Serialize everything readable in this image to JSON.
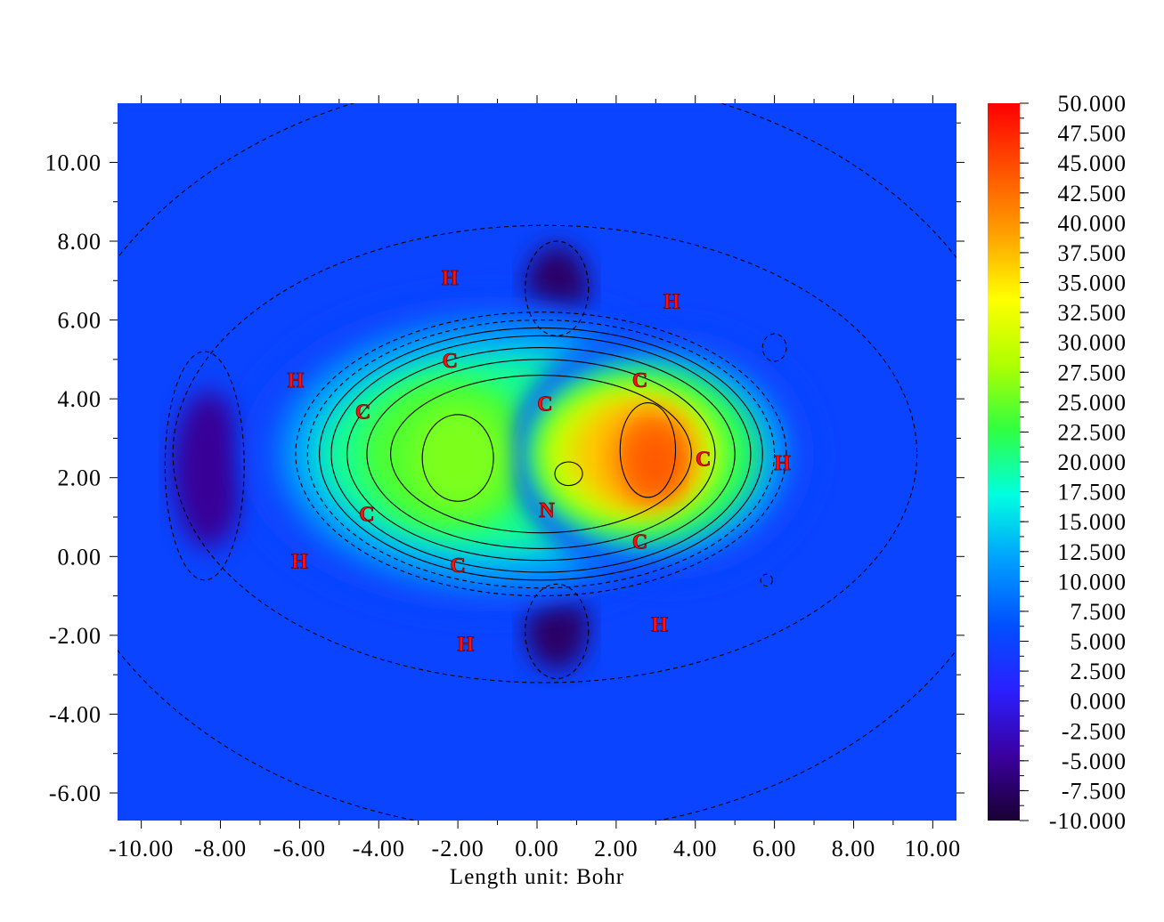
{
  "chart_data": {
    "type": "heatmap",
    "xlabel": "Length unit: Bohr",
    "x_ticks": [
      "-10.00",
      "-8.00",
      "-6.00",
      "-4.00",
      "-2.00",
      "0.00",
      "2.00",
      "4.00",
      "6.00",
      "8.00",
      "10.00"
    ],
    "y_ticks": [
      "10.00",
      "8.00",
      "6.00",
      "4.00",
      "2.00",
      "0.00",
      "-2.00",
      "-4.00",
      "-6.00"
    ],
    "xlim": [
      -10.6,
      10.6
    ],
    "ylim": [
      -6.7,
      11.5
    ],
    "colorbar": {
      "range": [
        -10,
        50
      ],
      "tick_labels": [
        "50.000",
        "47.500",
        "45.000",
        "42.500",
        "40.000",
        "37.500",
        "35.000",
        "32.500",
        "30.000",
        "27.500",
        "25.000",
        "22.500",
        "20.000",
        "17.500",
        "15.000",
        "12.500",
        "10.000",
        "7.500",
        "5.000",
        "2.500",
        "0.000",
        "-2.500",
        "-5.000",
        "-7.500",
        "-10.000"
      ],
      "colormap": [
        "#1a0033",
        "#3a00a0",
        "#2a20ff",
        "#0050ff",
        "#00a0ff",
        "#00ffe0",
        "#30ff40",
        "#b0ff00",
        "#ffff00",
        "#ffa000",
        "#ff5000",
        "#ff0000"
      ]
    },
    "atoms": [
      {
        "label": "H",
        "x": -2.2,
        "y": 7.1
      },
      {
        "label": "H",
        "x": 3.4,
        "y": 6.5
      },
      {
        "label": "C",
        "x": -2.2,
        "y": 5.0
      },
      {
        "label": "H",
        "x": -6.1,
        "y": 4.5
      },
      {
        "label": "C",
        "x": 2.6,
        "y": 4.5
      },
      {
        "label": "C",
        "x": -4.4,
        "y": 3.7
      },
      {
        "label": "C",
        "x": 0.2,
        "y": 3.9
      },
      {
        "label": "C",
        "x": 4.2,
        "y": 2.5
      },
      {
        "label": "H",
        "x": 6.2,
        "y": 2.4
      },
      {
        "label": "N",
        "x": 0.25,
        "y": 1.2
      },
      {
        "label": "C",
        "x": -4.3,
        "y": 1.1
      },
      {
        "label": "C",
        "x": 2.6,
        "y": 0.4
      },
      {
        "label": "H",
        "x": -6.0,
        "y": -0.1
      },
      {
        "label": "C",
        "x": -2.0,
        "y": -0.2
      },
      {
        "label": "H",
        "x": 3.1,
        "y": -1.7
      },
      {
        "label": "H",
        "x": -1.8,
        "y": -2.2
      }
    ]
  }
}
